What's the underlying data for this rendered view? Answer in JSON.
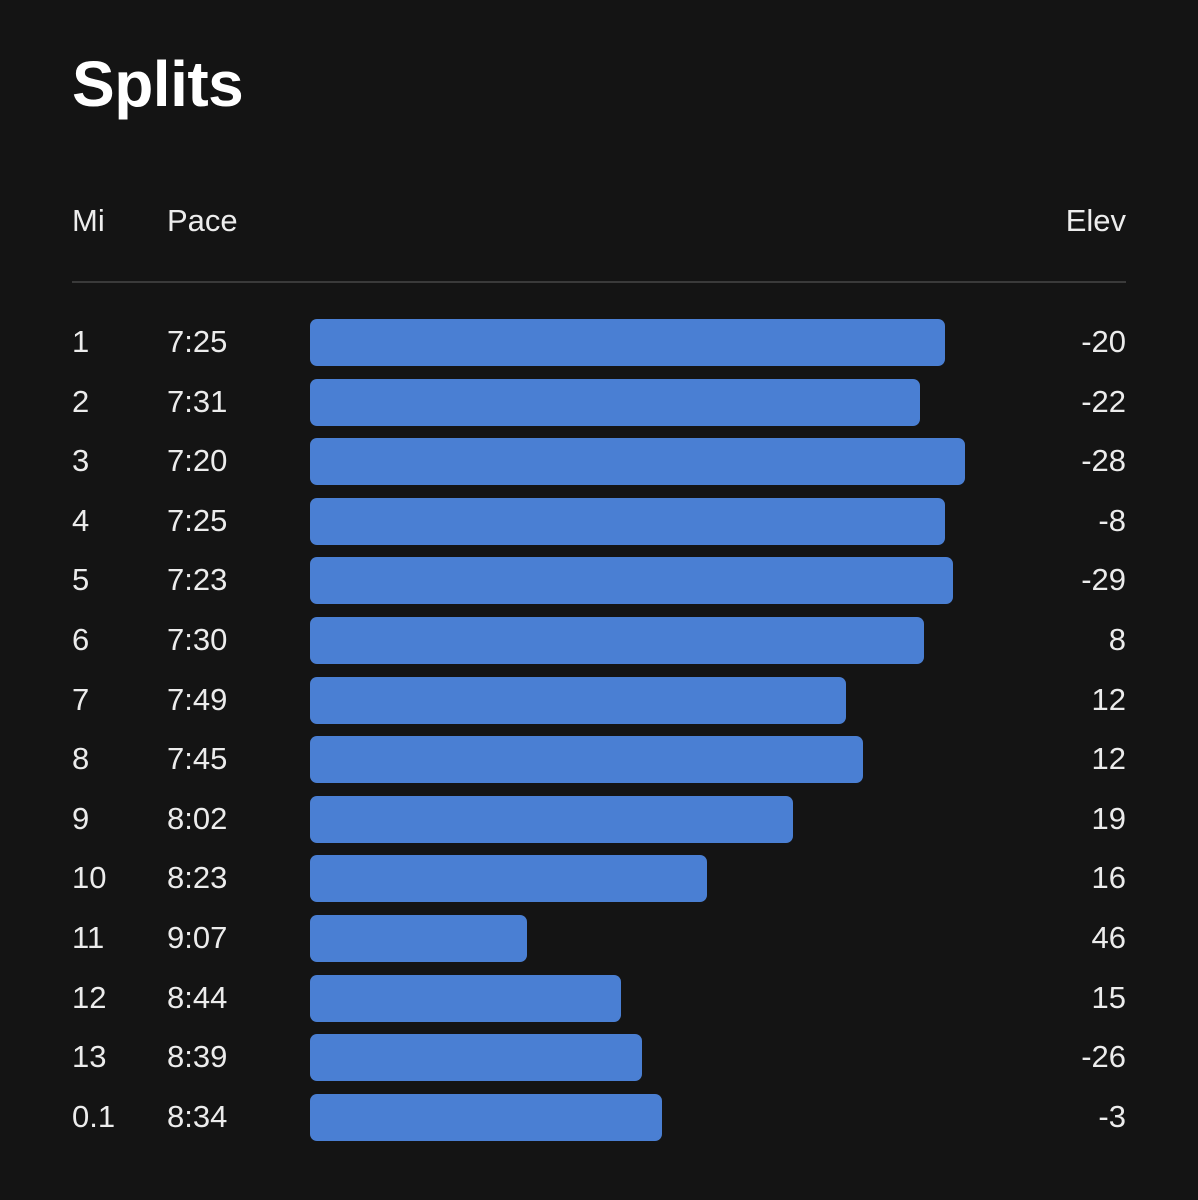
{
  "title": "Splits",
  "columns": {
    "mi": "Mi",
    "pace": "Pace",
    "elev": "Elev"
  },
  "bar_color": "#4a7fd3",
  "splits": [
    {
      "mi": "1",
      "pace": "7:25",
      "elev": "-20"
    },
    {
      "mi": "2",
      "pace": "7:31",
      "elev": "-22"
    },
    {
      "mi": "3",
      "pace": "7:20",
      "elev": "-28"
    },
    {
      "mi": "4",
      "pace": "7:25",
      "elev": "-8"
    },
    {
      "mi": "5",
      "pace": "7:23",
      "elev": "-29"
    },
    {
      "mi": "6",
      "pace": "7:30",
      "elev": "8"
    },
    {
      "mi": "7",
      "pace": "7:49",
      "elev": "12"
    },
    {
      "mi": "8",
      "pace": "7:45",
      "elev": "12"
    },
    {
      "mi": "9",
      "pace": "8:02",
      "elev": "19"
    },
    {
      "mi": "10",
      "pace": "8:23",
      "elev": "16"
    },
    {
      "mi": "11",
      "pace": "9:07",
      "elev": "46"
    },
    {
      "mi": "12",
      "pace": "8:44",
      "elev": "15"
    },
    {
      "mi": "13",
      "pace": "8:39",
      "elev": "-26"
    },
    {
      "mi": "0.1",
      "pace": "8:34",
      "elev": "-3"
    }
  ]
}
